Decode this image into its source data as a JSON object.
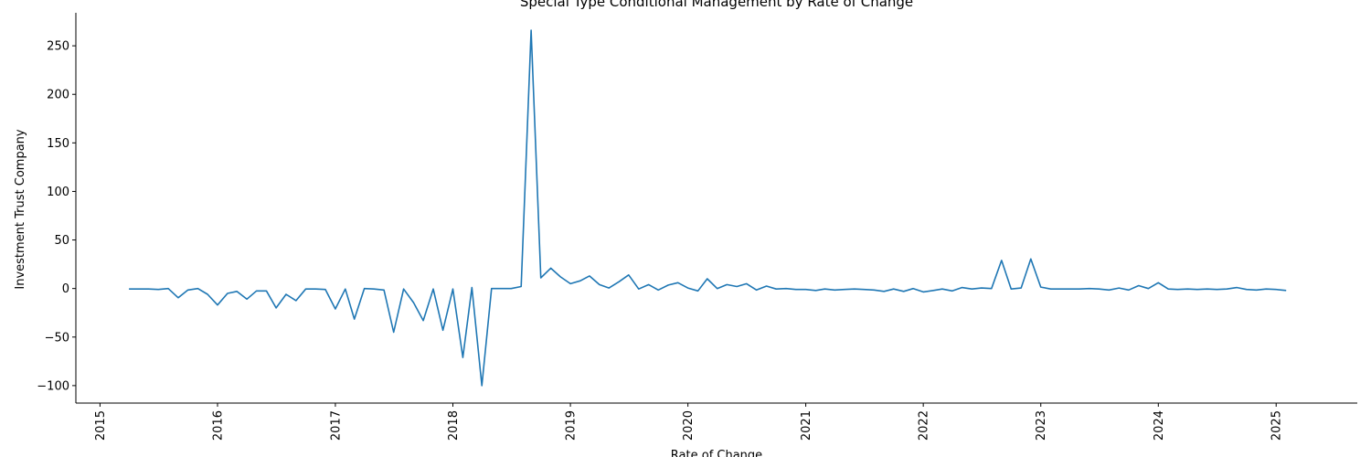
{
  "chart_data": {
    "type": "line",
    "title": "Special Type Conditional Management by Rate of Change",
    "xlabel": "Rate of Change",
    "ylabel": "Investment Trust Company",
    "x_tick_labels": [
      "2015",
      "2016",
      "2017",
      "2018",
      "2019",
      "2020",
      "2021",
      "2022",
      "2023",
      "2024",
      "2025"
    ],
    "y_ticks": [
      -100,
      -50,
      0,
      50,
      100,
      150,
      200,
      250
    ],
    "y_tick_labels": [
      "−100",
      "−50",
      "0",
      "50",
      "100",
      "150",
      "200",
      "250"
    ],
    "xlim": [
      "2014-10-18",
      "2025-09-10"
    ],
    "ylim": [
      -118,
      284
    ],
    "grid": false,
    "series": [
      {
        "color": "#1f77b4",
        "x": [
          "2015-04-01",
          "2015-05-01",
          "2015-06-01",
          "2015-07-01",
          "2015-08-01",
          "2015-09-01",
          "2015-10-01",
          "2015-11-01",
          "2015-12-01",
          "2016-01-01",
          "2016-02-01",
          "2016-03-01",
          "2016-04-01",
          "2016-05-01",
          "2016-06-01",
          "2016-07-01",
          "2016-08-01",
          "2016-09-01",
          "2016-10-01",
          "2016-11-01",
          "2016-12-01",
          "2017-01-01",
          "2017-02-01",
          "2017-03-01",
          "2017-04-01",
          "2017-05-01",
          "2017-06-01",
          "2017-07-01",
          "2017-08-01",
          "2017-09-01",
          "2017-10-01",
          "2017-11-01",
          "2017-12-01",
          "2018-01-01",
          "2018-02-01",
          "2018-03-01",
          "2018-04-01",
          "2018-05-01",
          "2018-06-01",
          "2018-07-01",
          "2018-08-01",
          "2018-09-01",
          "2018-10-01",
          "2018-11-01",
          "2018-12-01",
          "2019-01-01",
          "2019-02-01",
          "2019-03-01",
          "2019-04-01",
          "2019-05-01",
          "2019-06-01",
          "2019-07-01",
          "2019-08-01",
          "2019-09-01",
          "2019-10-01",
          "2019-11-01",
          "2019-12-01",
          "2020-01-01",
          "2020-02-01",
          "2020-03-01",
          "2020-04-01",
          "2020-05-01",
          "2020-06-01",
          "2020-07-01",
          "2020-08-01",
          "2020-09-01",
          "2020-10-01",
          "2020-11-01",
          "2020-12-01",
          "2021-01-01",
          "2021-02-01",
          "2021-03-01",
          "2021-04-01",
          "2021-05-01",
          "2021-06-01",
          "2021-07-01",
          "2021-08-01",
          "2021-09-01",
          "2021-10-01",
          "2021-11-01",
          "2021-12-01",
          "2022-01-01",
          "2022-02-01",
          "2022-03-01",
          "2022-04-01",
          "2022-05-01",
          "2022-06-01",
          "2022-07-01",
          "2022-08-01",
          "2022-09-01",
          "2022-10-01",
          "2022-11-01",
          "2022-12-01",
          "2023-01-01",
          "2023-02-01",
          "2023-03-01",
          "2023-04-01",
          "2023-05-01",
          "2023-06-01",
          "2023-07-01",
          "2023-08-01",
          "2023-09-01",
          "2023-10-01",
          "2023-11-01",
          "2023-12-01",
          "2024-01-01",
          "2024-02-01",
          "2024-03-01",
          "2024-04-01",
          "2024-05-01",
          "2024-06-01",
          "2024-07-01",
          "2024-08-01",
          "2024-09-01",
          "2024-10-01",
          "2024-11-01",
          "2024-12-01",
          "2025-01-01",
          "2025-02-01"
        ],
        "y": [
          -0.5,
          -0.5,
          -0.5,
          -1,
          0,
          -9.5,
          -1.5,
          0,
          -6,
          -17,
          -5,
          -3,
          -11,
          -2.5,
          -2.5,
          -20,
          -6,
          -12.5,
          -0.5,
          -0.5,
          -1,
          -21,
          -0.5,
          -31.5,
          0,
          -0.5,
          -1.5,
          -45,
          -0.5,
          -14.5,
          -33,
          -0.5,
          -43,
          -0.5,
          -71,
          1,
          -100,
          0,
          0,
          0,
          2,
          266,
          11,
          21,
          12,
          5,
          8,
          13,
          4,
          0.5,
          7,
          14,
          -0.5,
          4,
          -1.5,
          3.5,
          6,
          0.5,
          -2.5,
          10,
          0,
          4,
          2,
          5,
          -1.5,
          2.5,
          -0.5,
          0,
          -1,
          -1,
          -2,
          -0.5,
          -1.5,
          -1,
          -0.5,
          -1,
          -1.5,
          -3,
          -0.5,
          -3,
          0,
          -3.5,
          -2,
          -0.5,
          -2.5,
          1,
          -0.5,
          0.5,
          0,
          29,
          -0.5,
          0.5,
          30.5,
          1.5,
          -0.5,
          -0.5,
          -0.5,
          -0.5,
          0,
          -0.5,
          -1.5,
          0.5,
          -1.5,
          3,
          0,
          6,
          -0.5,
          -1,
          -0.5,
          -1,
          -0.5,
          -1,
          -0.5,
          1,
          -1,
          -1.5,
          -0.5,
          -1,
          -2
        ]
      }
    ]
  }
}
